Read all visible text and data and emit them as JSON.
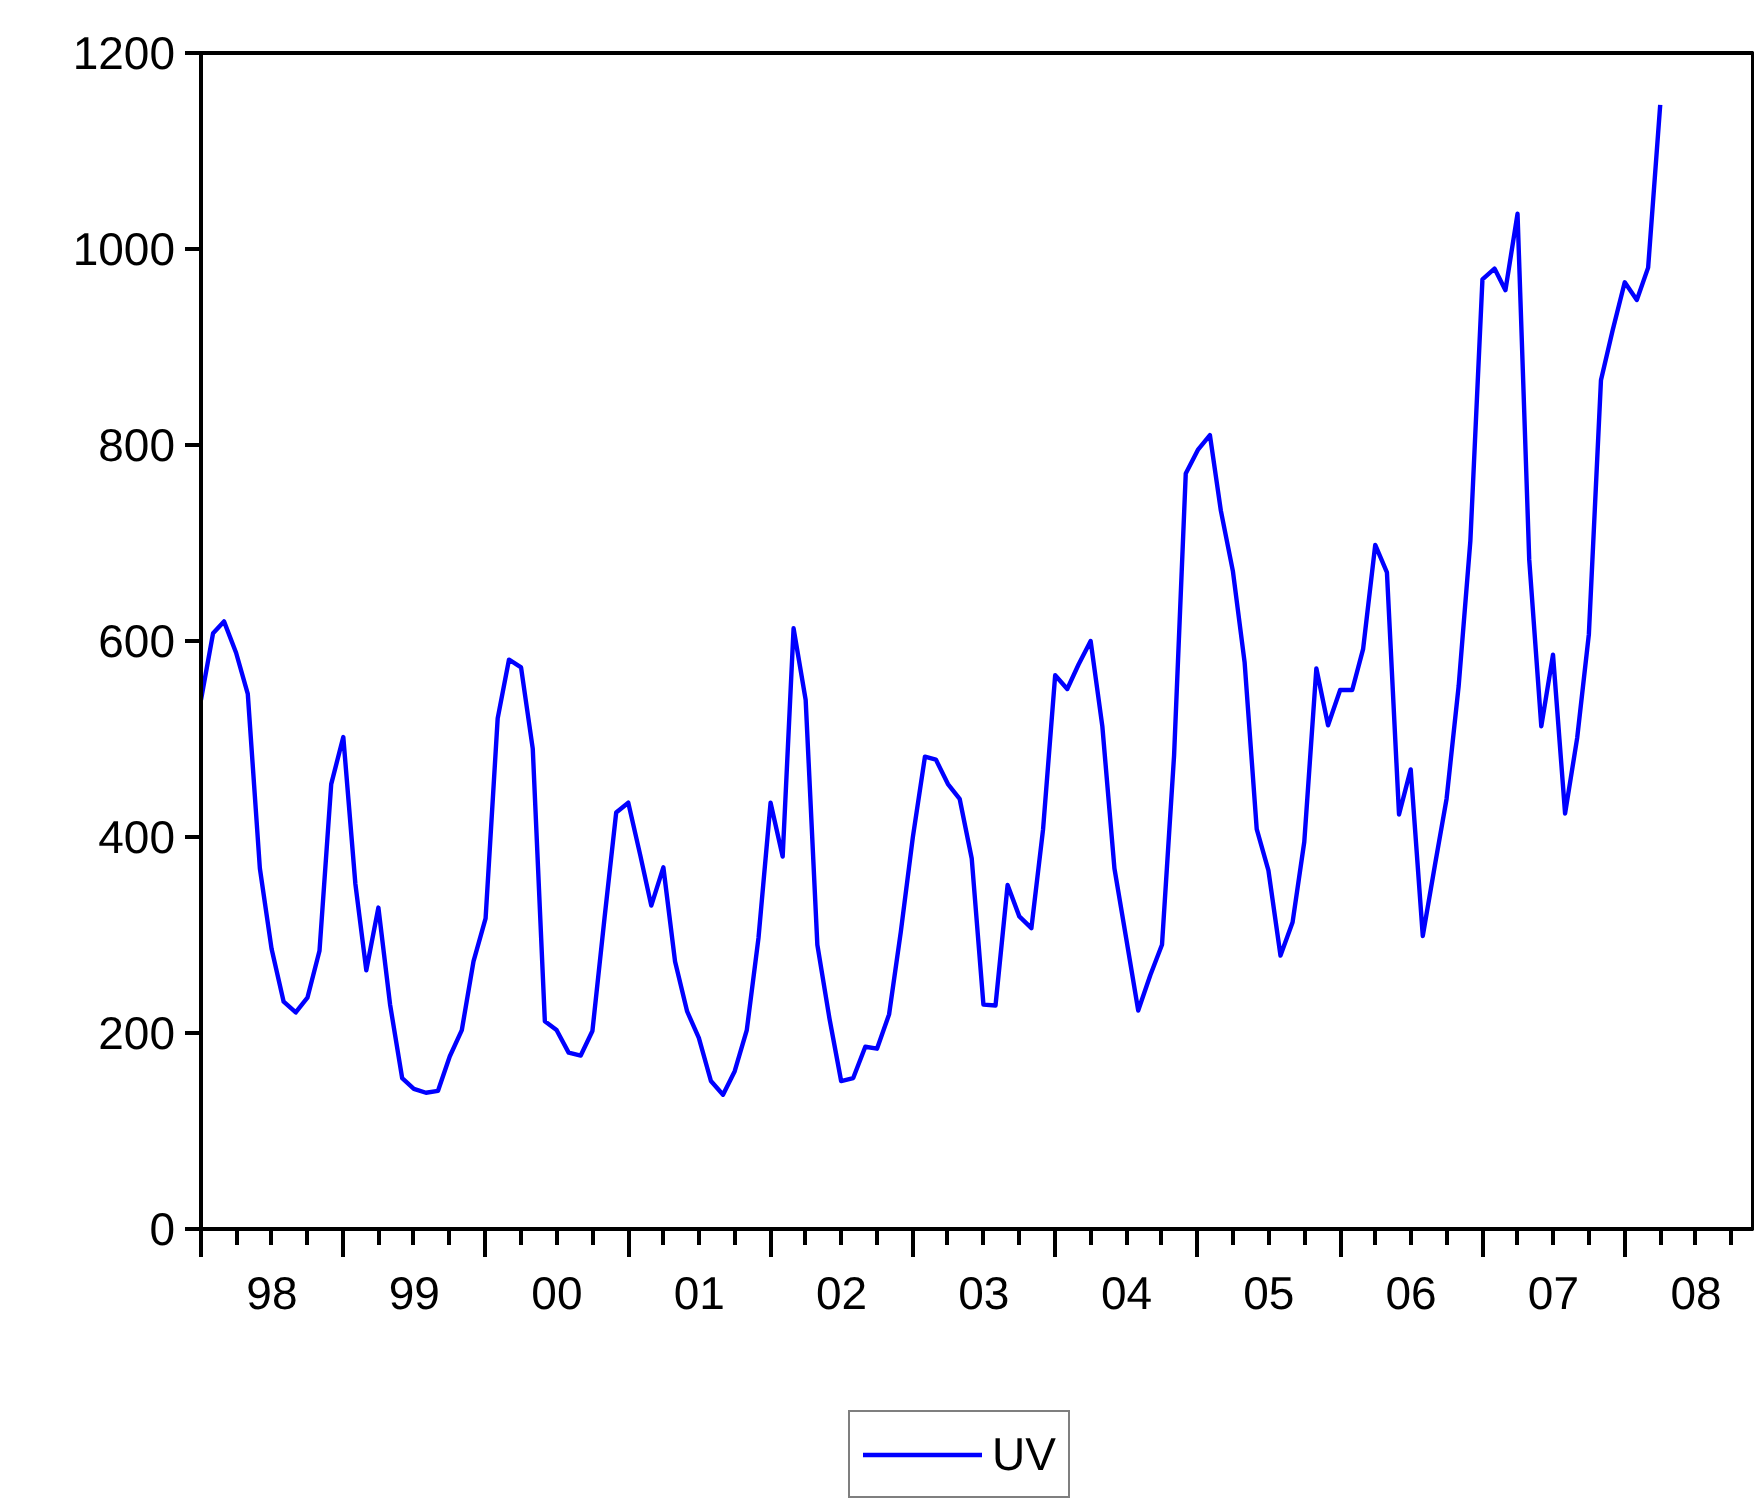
{
  "chart_data": {
    "type": "line",
    "x": [
      "1998-01",
      "1998-02",
      "1998-03",
      "1998-04",
      "1998-05",
      "1998-06",
      "1998-07",
      "1998-08",
      "1998-09",
      "1998-10",
      "1998-11",
      "1998-12",
      "1999-01",
      "1999-02",
      "1999-03",
      "1999-04",
      "1999-05",
      "1999-06",
      "1999-07",
      "1999-08",
      "1999-09",
      "1999-10",
      "1999-11",
      "1999-12",
      "2000-01",
      "2000-02",
      "2000-03",
      "2000-04",
      "2000-05",
      "2000-06",
      "2000-07",
      "2000-08",
      "2000-09",
      "2000-10",
      "2000-11",
      "2000-12",
      "2001-01",
      "2001-02",
      "2001-03",
      "2001-04",
      "2001-05",
      "2001-06",
      "2001-07",
      "2001-08",
      "2001-09",
      "2001-10",
      "2001-11",
      "2001-12",
      "2002-01",
      "2002-02",
      "2002-03",
      "2002-04",
      "2002-05",
      "2002-06",
      "2002-07",
      "2002-08",
      "2002-09",
      "2002-10",
      "2002-11",
      "2002-12",
      "2003-01",
      "2003-02",
      "2003-03",
      "2003-04",
      "2003-05",
      "2003-06",
      "2003-07",
      "2003-08",
      "2003-09",
      "2003-10",
      "2003-11",
      "2003-12",
      "2004-01",
      "2004-02",
      "2004-03",
      "2004-04",
      "2004-05",
      "2004-06",
      "2004-07",
      "2004-08",
      "2004-09",
      "2004-10",
      "2004-11",
      "2004-12",
      "2005-01",
      "2005-02",
      "2005-03",
      "2005-04",
      "2005-05",
      "2005-06",
      "2005-07",
      "2005-08",
      "2005-09",
      "2005-10",
      "2005-11",
      "2005-12",
      "2006-01",
      "2006-02",
      "2006-03",
      "2006-04",
      "2006-05",
      "2006-06",
      "2006-07",
      "2006-08",
      "2006-09",
      "2006-10",
      "2006-11",
      "2006-12",
      "2007-01",
      "2007-02",
      "2007-03",
      "2007-04",
      "2007-05",
      "2007-06",
      "2007-07",
      "2007-08",
      "2007-09",
      "2007-10",
      "2007-11",
      "2007-12",
      "2008-01",
      "2008-02",
      "2008-03",
      "2008-04"
    ],
    "series": [
      {
        "name": "UV",
        "color": "#0000ff",
        "values": [
          540,
          608,
          620,
          588,
          546,
          368,
          286,
          232,
          221,
          236,
          284,
          454,
          502,
          352,
          264,
          328,
          229,
          154,
          143,
          139,
          141,
          176,
          203,
          273,
          317,
          521,
          581,
          573,
          490,
          212,
          203,
          180,
          177,
          202,
          317,
          425,
          435,
          381,
          330,
          369,
          273,
          222,
          195,
          151,
          137,
          161,
          203,
          297,
          435,
          380,
          613,
          540,
          290,
          215,
          151,
          154,
          186,
          184,
          219,
          303,
          400,
          482,
          479,
          454,
          439,
          378,
          229,
          228,
          351,
          319,
          307,
          408,
          565,
          551,
          576,
          600,
          513,
          368,
          297,
          223,
          259,
          290,
          483,
          771,
          795,
          810,
          733,
          671,
          578,
          408,
          366,
          279,
          313,
          395,
          572,
          514,
          550,
          550,
          592,
          698,
          670,
          423,
          469,
          299,
          371,
          439,
          554,
          702,
          969,
          980,
          958,
          1036,
          683,
          513,
          586,
          424,
          501,
          607,
          866,
          917,
          966,
          948,
          981,
          1147
        ]
      }
    ],
    "xlim": [
      "1998-01-01",
      "2008-11-25"
    ],
    "xticks": [
      {
        "value": "1998-01-01",
        "label": null
      },
      {
        "value": "1998-04-01",
        "label": null
      },
      {
        "value": "1998-07-01",
        "label": null
      },
      {
        "value": "1998-10-01",
        "label": null
      },
      {
        "value": "1999-01-01",
        "label": null
      },
      {
        "value": "1999-04-01",
        "label": null
      },
      {
        "value": "1999-07-01",
        "label": null
      },
      {
        "value": "1999-10-01",
        "label": null
      },
      {
        "value": "2000-01-01",
        "label": null
      },
      {
        "value": "2000-04-01",
        "label": null
      },
      {
        "value": "2000-07-01",
        "label": null
      },
      {
        "value": "2000-10-01",
        "label": null
      },
      {
        "value": "2001-01-01",
        "label": null
      },
      {
        "value": "2001-04-01",
        "label": null
      },
      {
        "value": "2001-07-01",
        "label": null
      },
      {
        "value": "2001-10-01",
        "label": null
      },
      {
        "value": "2002-01-01",
        "label": null
      },
      {
        "value": "2002-04-01",
        "label": null
      },
      {
        "value": "2002-07-01",
        "label": null
      },
      {
        "value": "2002-10-01",
        "label": null
      },
      {
        "value": "2003-01-01",
        "label": null
      },
      {
        "value": "2003-04-01",
        "label": null
      },
      {
        "value": "2003-07-01",
        "label": null
      },
      {
        "value": "2003-10-01",
        "label": null
      },
      {
        "value": "2004-01-01",
        "label": null
      },
      {
        "value": "2004-04-01",
        "label": null
      },
      {
        "value": "2004-07-01",
        "label": null
      },
      {
        "value": "2004-10-01",
        "label": null
      },
      {
        "value": "2005-01-01",
        "label": null
      },
      {
        "value": "2005-04-01",
        "label": null
      },
      {
        "value": "2005-07-01",
        "label": null
      },
      {
        "value": "2005-10-01",
        "label": null
      },
      {
        "value": "2006-01-01",
        "label": null
      },
      {
        "value": "2006-04-01",
        "label": null
      },
      {
        "value": "2006-07-01",
        "label": null
      },
      {
        "value": "2006-10-01",
        "label": null
      },
      {
        "value": "2007-01-01",
        "label": null
      },
      {
        "value": "2007-04-01",
        "label": null
      },
      {
        "value": "2007-07-01",
        "label": null
      },
      {
        "value": "2007-10-01",
        "label": null
      },
      {
        "value": "2008-01-01",
        "label": null
      },
      {
        "value": "2008-04-01",
        "label": null
      },
      {
        "value": "2008-07-01",
        "label": null
      },
      {
        "value": "2008-10-01",
        "label": null
      },
      {
        "value": "1998-07-02",
        "label": "98"
      },
      {
        "value": "1999-07-02",
        "label": "99"
      },
      {
        "value": "2000-07-02",
        "label": "00"
      },
      {
        "value": "2001-07-02",
        "label": "01"
      },
      {
        "value": "2002-07-02",
        "label": "02"
      },
      {
        "value": "2003-07-02",
        "label": "03"
      },
      {
        "value": "2004-07-02",
        "label": "04"
      },
      {
        "value": "2005-07-02",
        "label": "05"
      },
      {
        "value": "2006-07-02",
        "label": "06"
      },
      {
        "value": "2007-07-02",
        "label": "07"
      },
      {
        "value": "2008-07-02",
        "label": "08"
      }
    ],
    "ylim": [
      0,
      1200
    ],
    "yticks": [
      0,
      200,
      400,
      600,
      800,
      1000,
      1200
    ],
    "grid": false,
    "legend": "bottom",
    "line_style": "solid",
    "marker": "none"
  }
}
